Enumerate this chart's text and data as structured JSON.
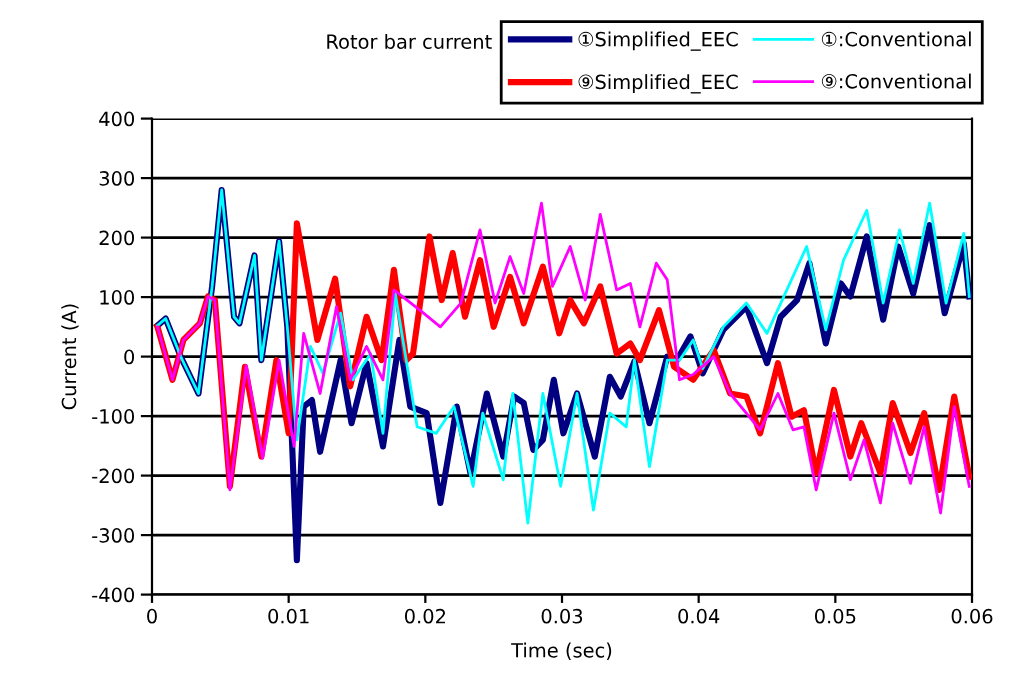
{
  "chart_data": {
    "type": "line",
    "legend_title": "Rotor bar current",
    "xlabel": "Time (sec)",
    "ylabel": "Current (A)",
    "xlim": [
      0,
      0.06
    ],
    "xticks": [
      0,
      0.01,
      0.02,
      0.03,
      0.04,
      0.05,
      0.06
    ],
    "ylim": [
      -400,
      400
    ],
    "yticks": [
      -400,
      -300,
      -200,
      -100,
      0,
      100,
      200,
      300,
      400
    ],
    "grid": "y",
    "legend": "top right",
    "marker": "none",
    "line_style": "solid",
    "series": [
      {
        "name": "①Simplified_EEC",
        "color": "#000080",
        "x": [
          0.0004,
          0.001,
          0.0021,
          0.0034,
          0.0044,
          0.0051,
          0.006,
          0.0064,
          0.0075,
          0.008,
          0.0093,
          0.0099,
          0.0106,
          0.0111,
          0.0117,
          0.0123,
          0.0138,
          0.0146,
          0.0157,
          0.0169,
          0.0181,
          0.0189,
          0.0201,
          0.0211,
          0.0223,
          0.0233,
          0.0245,
          0.0257,
          0.0265,
          0.0272,
          0.0279,
          0.0286,
          0.0294,
          0.0301,
          0.0311,
          0.0324,
          0.0335,
          0.0343,
          0.0353,
          0.0364,
          0.0377,
          0.0384,
          0.0394,
          0.0403,
          0.0418,
          0.0435,
          0.045,
          0.046,
          0.0472,
          0.0481,
          0.0493,
          0.0504,
          0.0511,
          0.0523,
          0.0535,
          0.0546,
          0.0557,
          0.0569,
          0.058,
          0.0594,
          0.0598
        ],
        "values": [
          52,
          64,
          0,
          -62,
          118,
          280,
          67,
          56,
          170,
          -6,
          194,
          50,
          -342,
          -84,
          -73,
          -160,
          -6,
          -112,
          -11,
          -151,
          28,
          -84,
          -95,
          -246,
          -84,
          -196,
          -62,
          -168,
          -67,
          -78,
          -157,
          -140,
          -39,
          -129,
          -62,
          -168,
          -34,
          -67,
          -8,
          -112,
          0,
          -6,
          34,
          -28,
          45,
          84,
          -11,
          67,
          95,
          157,
          22,
          123,
          101,
          202,
          62,
          185,
          106,
          221,
          73,
          190,
          101
        ]
      },
      {
        "name": "①:Conventional",
        "color": "#00ffff",
        "x": [
          0.0004,
          0.001,
          0.0021,
          0.0034,
          0.0044,
          0.0051,
          0.006,
          0.0064,
          0.0075,
          0.008,
          0.0093,
          0.0099,
          0.0106,
          0.0116,
          0.0125,
          0.0138,
          0.0147,
          0.016,
          0.0169,
          0.0178,
          0.0194,
          0.0208,
          0.0221,
          0.0235,
          0.0242,
          0.0257,
          0.0264,
          0.0275,
          0.0286,
          0.0299,
          0.0311,
          0.0323,
          0.0335,
          0.0347,
          0.0353,
          0.0364,
          0.0377,
          0.0386,
          0.0396,
          0.0403,
          0.0418,
          0.0435,
          0.045,
          0.0479,
          0.0493,
          0.0506,
          0.0523,
          0.0535,
          0.0547,
          0.0557,
          0.0569,
          0.0581,
          0.0594,
          0.0598
        ],
        "values": [
          52,
          64,
          0,
          -62,
          118,
          280,
          67,
          56,
          170,
          -6,
          194,
          50,
          -140,
          17,
          -28,
          73,
          -39,
          5,
          -129,
          106,
          -118,
          -129,
          -84,
          -218,
          -95,
          -207,
          -62,
          -280,
          -62,
          -218,
          -62,
          -258,
          -95,
          -118,
          -6,
          -185,
          -6,
          -6,
          28,
          -20,
          50,
          90,
          39,
          185,
          45,
          162,
          246,
          90,
          213,
          123,
          258,
          90,
          207,
          101
        ]
      },
      {
        "name": "⑨Simplified_EEC",
        "color": "#ff0000",
        "x": [
          0.0004,
          0.0015,
          0.0023,
          0.0035,
          0.0041,
          0.0046,
          0.0057,
          0.0068,
          0.008,
          0.0091,
          0.01,
          0.0106,
          0.0121,
          0.0134,
          0.0145,
          0.0157,
          0.0168,
          0.0177,
          0.0186,
          0.0191,
          0.0203,
          0.0212,
          0.022,
          0.0229,
          0.024,
          0.025,
          0.0262,
          0.0272,
          0.0286,
          0.0298,
          0.0306,
          0.0316,
          0.0328,
          0.034,
          0.035,
          0.0357,
          0.0371,
          0.0382,
          0.0396,
          0.0411,
          0.0423,
          0.0435,
          0.0445,
          0.0458,
          0.0468,
          0.0477,
          0.0486,
          0.0499,
          0.0511,
          0.0519,
          0.0533,
          0.0542,
          0.0555,
          0.0565,
          0.0576,
          0.0587,
          0.0598
        ],
        "values": [
          50,
          -39,
          28,
          56,
          101,
          95,
          -218,
          -17,
          -168,
          -6,
          -129,
          224,
          28,
          131,
          -50,
          67,
          -6,
          146,
          -6,
          5,
          202,
          95,
          174,
          67,
          162,
          50,
          134,
          56,
          151,
          39,
          95,
          56,
          118,
          5,
          22,
          -6,
          78,
          -17,
          -39,
          11,
          -62,
          -67,
          -129,
          -11,
          -101,
          -90,
          -196,
          -56,
          -168,
          -112,
          -196,
          -78,
          -162,
          -95,
          -224,
          -67,
          -202
        ]
      },
      {
        "name": "⑨:Conventional",
        "color": "#ff00ff",
        "x": [
          0.0004,
          0.0015,
          0.0023,
          0.0035,
          0.0041,
          0.0046,
          0.0057,
          0.0069,
          0.0081,
          0.0093,
          0.0104,
          0.0111,
          0.0123,
          0.0135,
          0.0145,
          0.0157,
          0.0169,
          0.0177,
          0.0196,
          0.0211,
          0.0226,
          0.024,
          0.0251,
          0.0262,
          0.0272,
          0.0285,
          0.0293,
          0.0306,
          0.0317,
          0.0328,
          0.034,
          0.035,
          0.0357,
          0.0369,
          0.0377,
          0.0386,
          0.0396,
          0.0411,
          0.0423,
          0.0445,
          0.0458,
          0.0469,
          0.0477,
          0.0486,
          0.0499,
          0.0511,
          0.0521,
          0.0533,
          0.0542,
          0.0555,
          0.0565,
          0.0577,
          0.0587,
          0.0598
        ],
        "values": [
          50,
          -39,
          28,
          56,
          101,
          95,
          -224,
          -15,
          -171,
          -6,
          -151,
          39,
          -62,
          84,
          -39,
          17,
          -39,
          112,
          78,
          50,
          90,
          213,
          90,
          168,
          106,
          258,
          118,
          185,
          95,
          239,
          112,
          123,
          50,
          157,
          129,
          -39,
          -30,
          0,
          -62,
          -123,
          -62,
          -123,
          -118,
          -224,
          -95,
          -207,
          -140,
          -246,
          -112,
          -213,
          -118,
          -263,
          -84,
          -218
        ]
      }
    ]
  }
}
